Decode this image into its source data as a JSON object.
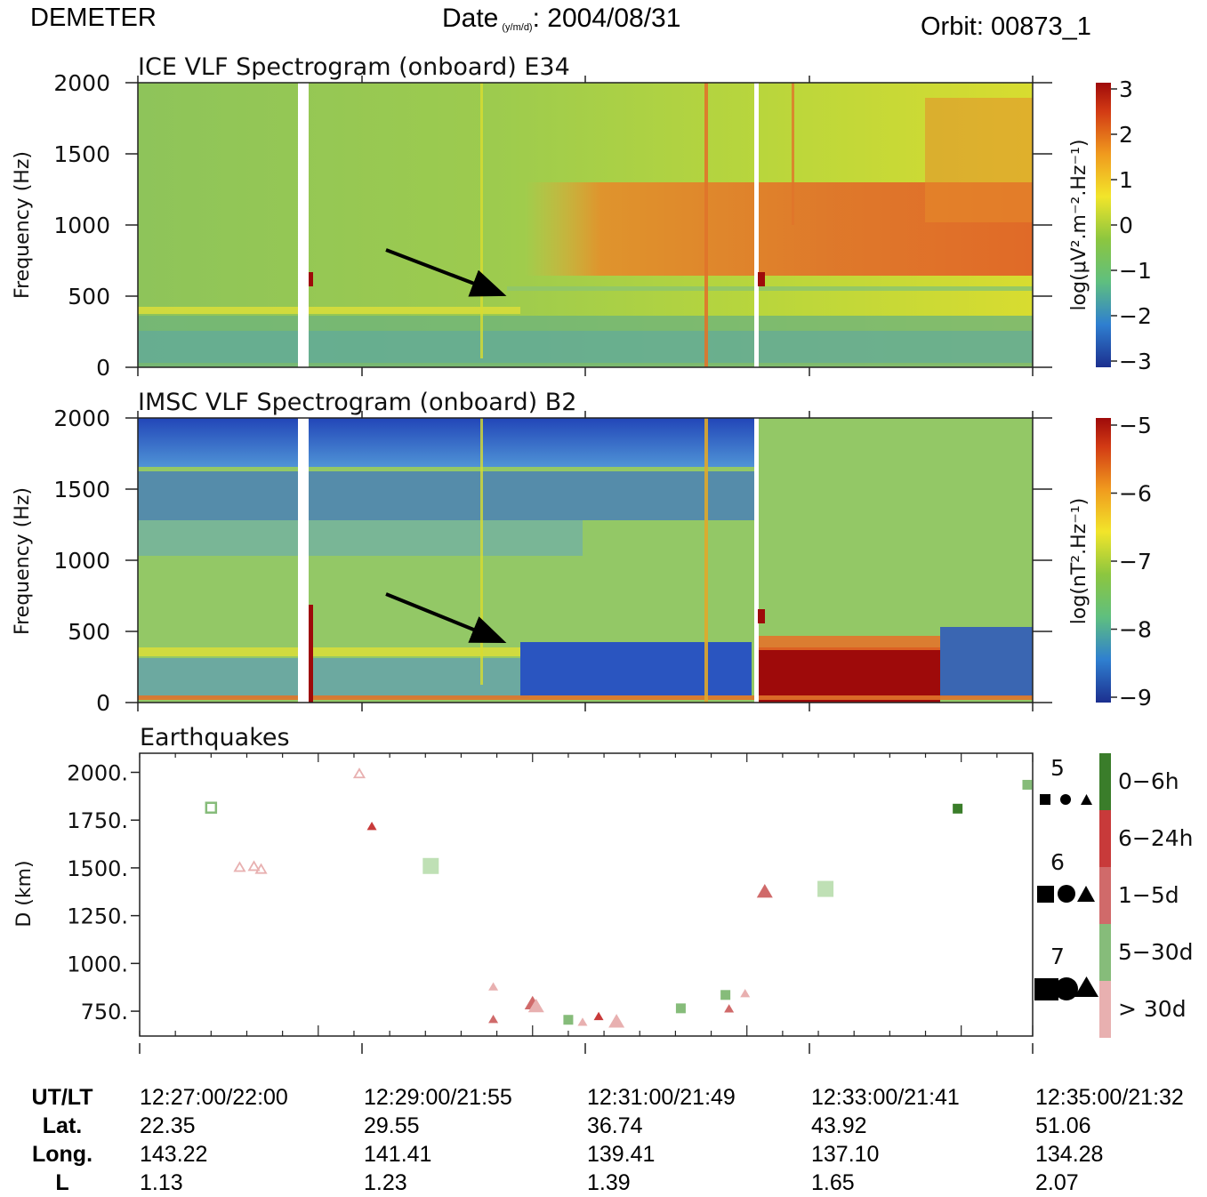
{
  "header": {
    "left": "DEMETER",
    "date_label": "Date",
    "date_sub": "(y/m/d)",
    "date_value": ": 2004/08/31",
    "orbit": "Orbit: 00873_1"
  },
  "chart_data": [
    {
      "type": "heatmap",
      "title": "ICE VLF Spectrogram (onboard) E34",
      "ylabel": "Frequency (Hz)",
      "ylim": [
        0,
        2000
      ],
      "yticks": [
        "2000",
        "1500",
        "1000",
        "500",
        "0"
      ],
      "colorbar_label": "log(μV².m⁻².Hz⁻¹)",
      "colorbar_range": [
        -3,
        3
      ],
      "colorbar_ticks": [
        "3",
        "2",
        "1",
        "0",
        "−1",
        "−2",
        "−3"
      ],
      "colors": [
        "#1c2f8f",
        "#2f7fd0",
        "#5fbf7f",
        "#8cc63f",
        "#f2e52a",
        "#f09a1e",
        "#d23a14",
        "#9e0a0a"
      ]
    },
    {
      "type": "heatmap",
      "title": "IMSC VLF Spectrogram (onboard) B2",
      "ylabel": "Frequency (Hz)",
      "ylim": [
        0,
        2000
      ],
      "yticks": [
        "2000",
        "1500",
        "1000",
        "500",
        "0"
      ],
      "colorbar_label": "log(nT².Hz⁻¹)",
      "colorbar_range": [
        -9,
        -5
      ],
      "colorbar_ticks": [
        "−5",
        "−6",
        "−7",
        "−8",
        "−9"
      ]
    },
    {
      "type": "scatter",
      "title": "Earthquakes",
      "ylabel": "D (km)",
      "ylim": [
        620,
        2100
      ],
      "yticks": [
        "2000.",
        "1750.",
        "1500.",
        "1250.",
        "1000.",
        "750."
      ],
      "xrange": [
        "12:26:40",
        "12:35:00"
      ],
      "x_unit": "seconds after 12:26:40",
      "legend_magnitudes": [
        "5",
        "6",
        "7"
      ],
      "legend_ages": [
        {
          "label": "0−6h",
          "color": "#3a7d2a"
        },
        {
          "label": "6−24h",
          "color": "#c83a3a"
        },
        {
          "label": "1−5d",
          "color": "#d06a6a"
        },
        {
          "label": "5−30d",
          "color": "#86bc7a"
        },
        {
          "label": "> 30d",
          "color": "#e8b0b0"
        }
      ],
      "points": [
        {
          "t": 40,
          "d": 1815,
          "shape": "square",
          "mag": 5,
          "color": "#86bc7a",
          "open": true
        },
        {
          "t": 56,
          "d": 1505,
          "shape": "triangle",
          "mag": 5,
          "color": "#e8b0b0",
          "open": true
        },
        {
          "t": 64,
          "d": 1510,
          "shape": "triangle",
          "mag": 5,
          "color": "#e8b0b0",
          "open": true
        },
        {
          "t": 68,
          "d": 1495,
          "shape": "triangle",
          "mag": 5,
          "color": "#e8b0b0",
          "open": true
        },
        {
          "t": 123,
          "d": 1995,
          "shape": "triangle",
          "mag": 5,
          "color": "#e8b0b0",
          "open": true
        },
        {
          "t": 130,
          "d": 1720,
          "shape": "triangle",
          "mag": 5,
          "color": "#c83a3a"
        },
        {
          "t": 163,
          "d": 1510,
          "shape": "square",
          "mag": 6,
          "color": "#bfe0b5"
        },
        {
          "t": 198,
          "d": 880,
          "shape": "triangle",
          "mag": 5,
          "color": "#e8b0b0"
        },
        {
          "t": 198,
          "d": 710,
          "shape": "triangle",
          "mag": 5,
          "color": "#d06a6a"
        },
        {
          "t": 220,
          "d": 795,
          "shape": "triangle",
          "mag": 6,
          "color": "#d06a6a"
        },
        {
          "t": 222,
          "d": 780,
          "shape": "triangle",
          "mag": 6,
          "color": "#e8b0b0"
        },
        {
          "t": 240,
          "d": 705,
          "shape": "square",
          "mag": 5,
          "color": "#86bc7a"
        },
        {
          "t": 248,
          "d": 695,
          "shape": "triangle",
          "mag": 5,
          "color": "#e8b0b0"
        },
        {
          "t": 257,
          "d": 725,
          "shape": "triangle",
          "mag": 5,
          "color": "#c83a3a"
        },
        {
          "t": 267,
          "d": 700,
          "shape": "triangle",
          "mag": 6,
          "color": "#e8b0b0"
        },
        {
          "t": 303,
          "d": 765,
          "shape": "square",
          "mag": 5,
          "color": "#86bc7a"
        },
        {
          "t": 328,
          "d": 835,
          "shape": "square",
          "mag": 5,
          "color": "#86bc7a"
        },
        {
          "t": 330,
          "d": 765,
          "shape": "triangle",
          "mag": 5,
          "color": "#d06a6a"
        },
        {
          "t": 339,
          "d": 845,
          "shape": "triangle",
          "mag": 5,
          "color": "#e8b0b0"
        },
        {
          "t": 350,
          "d": 1380,
          "shape": "triangle",
          "mag": 6,
          "color": "#d06a6a"
        },
        {
          "t": 384,
          "d": 1390,
          "shape": "square",
          "mag": 6,
          "color": "#bfe0b5"
        },
        {
          "t": 458,
          "d": 1810,
          "shape": "square",
          "mag": 5,
          "color": "#3a7d2a"
        },
        {
          "t": 497,
          "d": 1935,
          "shape": "square",
          "mag": 5,
          "color": "#86bc7a"
        }
      ]
    }
  ],
  "footer": {
    "labels": [
      "UT/LT",
      "Lat.",
      "Long.",
      "L"
    ],
    "columns": [
      {
        "time": "12:27:00/22:00",
        "lat": "22.35",
        "long": "143.22",
        "l": "1.13"
      },
      {
        "time": "12:29:00/21:55",
        "lat": "29.55",
        "long": "141.41",
        "l": "1.23"
      },
      {
        "time": "12:31:00/21:49",
        "lat": "36.74",
        "long": "139.41",
        "l": "1.39"
      },
      {
        "time": "12:33:00/21:41",
        "lat": "43.92",
        "long": "137.10",
        "l": "1.65"
      },
      {
        "time": "12:35:00/21:32",
        "lat": "51.06",
        "long": "134.28",
        "l": "2.07"
      }
    ]
  }
}
